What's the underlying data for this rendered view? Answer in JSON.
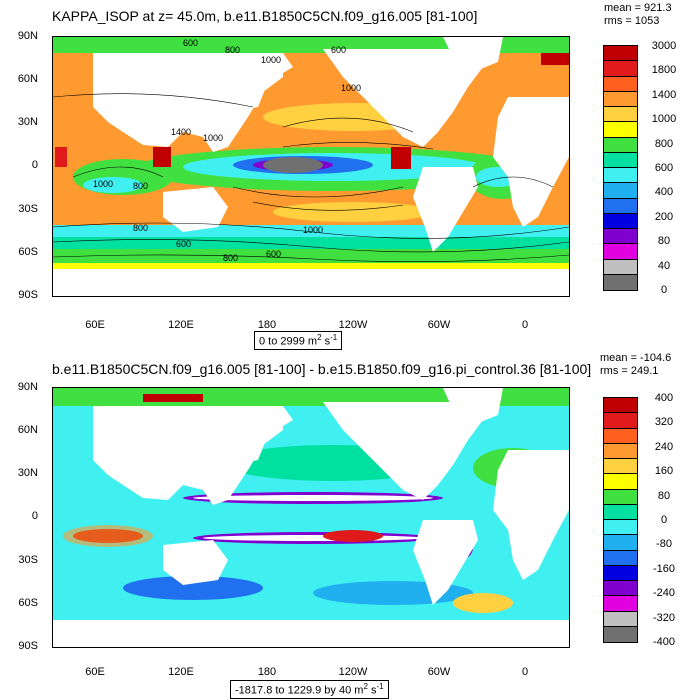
{
  "panel1": {
    "title": "KAPPA_ISOP at z=  45.0m, b.e11.B1850C5CN.f09_g16.005 [81-100]",
    "stats": [
      "mean = 921.3",
      "rms = 1053"
    ],
    "range_label": {
      "text": "0 to 2999 m",
      "sup": "2",
      "tail": " s",
      "sup2": "-1"
    },
    "colorbar_labels": [
      "3000",
      "1800",
      "1400",
      "1000",
      "800",
      "600",
      "400",
      "200",
      "80",
      "40",
      "0"
    ],
    "colorbar_colors": [
      "#c00000",
      "#e01a1a",
      "#ff6020",
      "#ff9a30",
      "#ffd040",
      "#ffff00",
      "#40e040",
      "#00e0a0",
      "#40f0f0",
      "#20b0f0",
      "#2070f0",
      "#0000e0",
      "#8000d0",
      "#e000e0",
      "#c0c0c0",
      "#707070"
    ],
    "contour_labels": [
      "600",
      "800",
      "1000",
      "600",
      "1000",
      "1400",
      "1000",
      "800",
      "1000",
      "600",
      "1000",
      "800",
      "600",
      "800"
    ]
  },
  "panel2": {
    "title": "b.e11.B1850C5CN.f09_g16.005 [81-100] - b.e15.B1850.f09_g16.pi_control.36 [81-100]",
    "stats": [
      "mean = -104.6",
      "rms = 249.1"
    ],
    "range_label": {
      "text": "-1817.8 to 1229.9 by 40 m",
      "sup": "2",
      "tail": " s",
      "sup2": "-1"
    },
    "colorbar_labels": [
      "400",
      "320",
      "240",
      "160",
      "80",
      "0",
      "-80",
      "-160",
      "-240",
      "-320",
      "-400"
    ],
    "colorbar_colors": [
      "#c00000",
      "#e01a1a",
      "#ff6020",
      "#ff9a30",
      "#ffd040",
      "#ffff00",
      "#40e040",
      "#00e0a0",
      "#40f0f0",
      "#20b0f0",
      "#2070f0",
      "#0000e0",
      "#8000d0",
      "#e000e0",
      "#c0c0c0",
      "#707070"
    ]
  },
  "axes": {
    "lat_labels": [
      "90N",
      "60N",
      "30N",
      "0",
      "30S",
      "60S",
      "90S"
    ],
    "lon_labels": [
      "60E",
      "120E",
      "180",
      "120W",
      "60W",
      "0"
    ]
  }
}
